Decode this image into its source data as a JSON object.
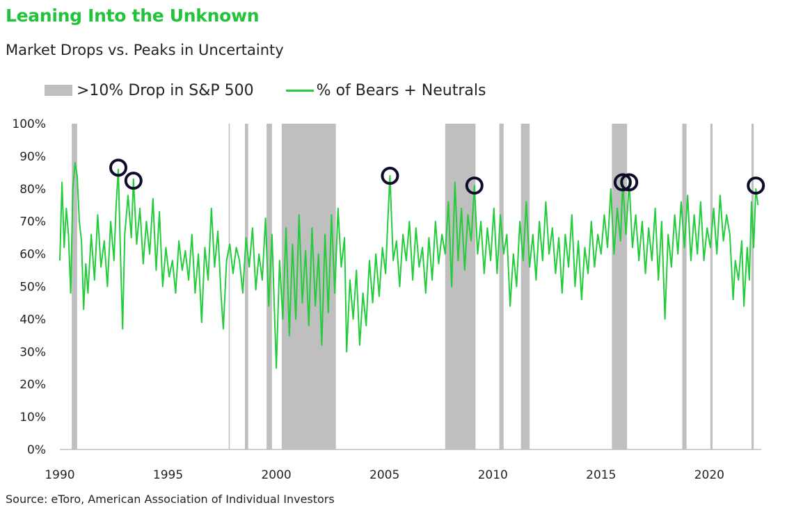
{
  "title": "Leaning Into the Unknown",
  "subtitle": "Market Drops vs. Peaks in Uncertainty",
  "source": "Source: eToro, American Association of Individual Investors",
  "colors": {
    "title": "#22c33a",
    "line": "#22cc3a",
    "shade": "#bfbfbf",
    "marker": "#0d0d2b"
  },
  "chart_data": {
    "type": "line",
    "title": "Market Drops vs. Peaks in Uncertainty",
    "xlabel": "",
    "ylabel": "",
    "xlim": [
      1990,
      2022.4
    ],
    "ylim": [
      0,
      100
    ],
    "grid": false,
    "legend_position": "top-left",
    "legend": [
      {
        "label": ">10% Drop in S&P 500",
        "kind": "shaded-band"
      },
      {
        "label": "% of Bears + Neutrals",
        "kind": "line"
      }
    ],
    "x_ticks": [
      {
        "value": 1990,
        "label": "1990"
      },
      {
        "value": 1995,
        "label": "1995"
      },
      {
        "value": 2000,
        "label": "2000"
      },
      {
        "value": 2005,
        "label": "2005"
      },
      {
        "value": 2010,
        "label": "2010"
      },
      {
        "value": 2015,
        "label": "2015"
      },
      {
        "value": 2020,
        "label": "2020"
      }
    ],
    "y_ticks": [
      {
        "value": 0,
        "label": "0%"
      },
      {
        "value": 10,
        "label": "10%"
      },
      {
        "value": 20,
        "label": "20%"
      },
      {
        "value": 30,
        "label": "30%"
      },
      {
        "value": 40,
        "label": "40%"
      },
      {
        "value": 50,
        "label": "50%"
      },
      {
        "value": 60,
        "label": "60%"
      },
      {
        "value": 70,
        "label": "70%"
      },
      {
        "value": 80,
        "label": "80%"
      },
      {
        "value": 90,
        "label": "90%"
      },
      {
        "value": 100,
        "label": "100%"
      }
    ],
    "drop_periods": [
      {
        "start": 1990.55,
        "end": 1990.8
      },
      {
        "start": 1997.8,
        "end": 1997.85
      },
      {
        "start": 1998.55,
        "end": 1998.7
      },
      {
        "start": 1999.55,
        "end": 1999.8
      },
      {
        "start": 2000.25,
        "end": 2002.75
      },
      {
        "start": 2007.8,
        "end": 2009.2
      },
      {
        "start": 2010.3,
        "end": 2010.5
      },
      {
        "start": 2011.3,
        "end": 2011.7
      },
      {
        "start": 2015.5,
        "end": 2016.2
      },
      {
        "start": 2018.75,
        "end": 2018.95
      },
      {
        "start": 2020.05,
        "end": 2020.15
      },
      {
        "start": 2021.95,
        "end": 2022.05
      }
    ],
    "series": [
      {
        "name": "% of Bears + Neutrals",
        "points": [
          [
            1990.0,
            58
          ],
          [
            1990.1,
            82
          ],
          [
            1990.2,
            62
          ],
          [
            1990.3,
            74
          ],
          [
            1990.4,
            66
          ],
          [
            1990.5,
            48
          ],
          [
            1990.6,
            80
          ],
          [
            1990.7,
            88
          ],
          [
            1990.8,
            84
          ],
          [
            1990.9,
            70
          ],
          [
            1991.0,
            64
          ],
          [
            1991.1,
            43
          ],
          [
            1991.2,
            57
          ],
          [
            1991.3,
            48
          ],
          [
            1991.45,
            66
          ],
          [
            1991.6,
            52
          ],
          [
            1991.75,
            72
          ],
          [
            1991.9,
            56
          ],
          [
            1992.05,
            64
          ],
          [
            1992.2,
            50
          ],
          [
            1992.35,
            70
          ],
          [
            1992.5,
            58
          ],
          [
            1992.6,
            75
          ],
          [
            1992.7,
            86
          ],
          [
            1992.8,
            60
          ],
          [
            1992.9,
            37
          ],
          [
            1993.0,
            66
          ],
          [
            1993.15,
            78
          ],
          [
            1993.3,
            65
          ],
          [
            1993.4,
            83
          ],
          [
            1993.55,
            63
          ],
          [
            1993.7,
            74
          ],
          [
            1993.85,
            57
          ],
          [
            1994.0,
            70
          ],
          [
            1994.15,
            60
          ],
          [
            1994.3,
            77
          ],
          [
            1994.45,
            55
          ],
          [
            1994.6,
            73
          ],
          [
            1994.75,
            50
          ],
          [
            1994.9,
            62
          ],
          [
            1995.05,
            53
          ],
          [
            1995.2,
            58
          ],
          [
            1995.35,
            48
          ],
          [
            1995.5,
            64
          ],
          [
            1995.65,
            55
          ],
          [
            1995.8,
            61
          ],
          [
            1995.95,
            52
          ],
          [
            1996.1,
            66
          ],
          [
            1996.25,
            48
          ],
          [
            1996.4,
            60
          ],
          [
            1996.55,
            39
          ],
          [
            1996.7,
            62
          ],
          [
            1996.85,
            52
          ],
          [
            1997.0,
            74
          ],
          [
            1997.15,
            56
          ],
          [
            1997.3,
            67
          ],
          [
            1997.45,
            47
          ],
          [
            1997.55,
            37
          ],
          [
            1997.7,
            58
          ],
          [
            1997.85,
            63
          ],
          [
            1998.0,
            54
          ],
          [
            1998.15,
            62
          ],
          [
            1998.3,
            58
          ],
          [
            1998.45,
            48
          ],
          [
            1998.6,
            65
          ],
          [
            1998.75,
            56
          ],
          [
            1998.9,
            68
          ],
          [
            1999.05,
            49
          ],
          [
            1999.2,
            60
          ],
          [
            1999.35,
            52
          ],
          [
            1999.5,
            71
          ],
          [
            1999.65,
            44
          ],
          [
            1999.8,
            66
          ],
          [
            1999.9,
            45
          ],
          [
            2000.0,
            25
          ],
          [
            2000.15,
            58
          ],
          [
            2000.3,
            40
          ],
          [
            2000.45,
            68
          ],
          [
            2000.6,
            35
          ],
          [
            2000.75,
            63
          ],
          [
            2000.9,
            40
          ],
          [
            2001.05,
            72
          ],
          [
            2001.2,
            45
          ],
          [
            2001.35,
            61
          ],
          [
            2001.5,
            38
          ],
          [
            2001.65,
            68
          ],
          [
            2001.8,
            44
          ],
          [
            2001.95,
            60
          ],
          [
            2002.1,
            32
          ],
          [
            2002.25,
            66
          ],
          [
            2002.4,
            42
          ],
          [
            2002.55,
            72
          ],
          [
            2002.7,
            48
          ],
          [
            2002.85,
            74
          ],
          [
            2003.0,
            56
          ],
          [
            2003.15,
            65
          ],
          [
            2003.25,
            30
          ],
          [
            2003.4,
            52
          ],
          [
            2003.55,
            40
          ],
          [
            2003.7,
            55
          ],
          [
            2003.85,
            32
          ],
          [
            2004.0,
            48
          ],
          [
            2004.15,
            38
          ],
          [
            2004.3,
            58
          ],
          [
            2004.45,
            45
          ],
          [
            2004.6,
            60
          ],
          [
            2004.75,
            47
          ],
          [
            2004.9,
            62
          ],
          [
            2005.05,
            54
          ],
          [
            2005.15,
            70
          ],
          [
            2005.25,
            84
          ],
          [
            2005.4,
            58
          ],
          [
            2005.55,
            64
          ],
          [
            2005.7,
            50
          ],
          [
            2005.85,
            66
          ],
          [
            2006.0,
            58
          ],
          [
            2006.15,
            70
          ],
          [
            2006.3,
            52
          ],
          [
            2006.45,
            68
          ],
          [
            2006.6,
            56
          ],
          [
            2006.75,
            62
          ],
          [
            2006.9,
            48
          ],
          [
            2007.05,
            65
          ],
          [
            2007.2,
            52
          ],
          [
            2007.35,
            70
          ],
          [
            2007.5,
            57
          ],
          [
            2007.65,
            66
          ],
          [
            2007.8,
            60
          ],
          [
            2007.95,
            76
          ],
          [
            2008.1,
            50
          ],
          [
            2008.25,
            82
          ],
          [
            2008.4,
            58
          ],
          [
            2008.55,
            74
          ],
          [
            2008.7,
            55
          ],
          [
            2008.85,
            72
          ],
          [
            2009.0,
            64
          ],
          [
            2009.15,
            81
          ],
          [
            2009.3,
            60
          ],
          [
            2009.45,
            70
          ],
          [
            2009.6,
            54
          ],
          [
            2009.75,
            68
          ],
          [
            2009.9,
            58
          ],
          [
            2010.05,
            74
          ],
          [
            2010.2,
            54
          ],
          [
            2010.35,
            72
          ],
          [
            2010.5,
            60
          ],
          [
            2010.65,
            66
          ],
          [
            2010.8,
            44
          ],
          [
            2010.95,
            60
          ],
          [
            2011.1,
            50
          ],
          [
            2011.25,
            70
          ],
          [
            2011.4,
            58
          ],
          [
            2011.55,
            76
          ],
          [
            2011.7,
            56
          ],
          [
            2011.85,
            66
          ],
          [
            2012.0,
            52
          ],
          [
            2012.15,
            70
          ],
          [
            2012.3,
            58
          ],
          [
            2012.45,
            76
          ],
          [
            2012.6,
            60
          ],
          [
            2012.75,
            68
          ],
          [
            2012.9,
            54
          ],
          [
            2013.05,
            65
          ],
          [
            2013.2,
            48
          ],
          [
            2013.35,
            66
          ],
          [
            2013.5,
            56
          ],
          [
            2013.65,
            72
          ],
          [
            2013.8,
            50
          ],
          [
            2013.95,
            64
          ],
          [
            2014.1,
            46
          ],
          [
            2014.25,
            62
          ],
          [
            2014.4,
            54
          ],
          [
            2014.55,
            70
          ],
          [
            2014.7,
            56
          ],
          [
            2014.85,
            66
          ],
          [
            2015.0,
            60
          ],
          [
            2015.15,
            72
          ],
          [
            2015.3,
            62
          ],
          [
            2015.45,
            80
          ],
          [
            2015.6,
            60
          ],
          [
            2015.75,
            74
          ],
          [
            2015.9,
            64
          ],
          [
            2016.0,
            82
          ],
          [
            2016.15,
            66
          ],
          [
            2016.3,
            82
          ],
          [
            2016.45,
            62
          ],
          [
            2016.6,
            72
          ],
          [
            2016.75,
            58
          ],
          [
            2016.9,
            70
          ],
          [
            2017.05,
            54
          ],
          [
            2017.2,
            68
          ],
          [
            2017.35,
            58
          ],
          [
            2017.5,
            74
          ],
          [
            2017.65,
            52
          ],
          [
            2017.8,
            70
          ],
          [
            2017.95,
            40
          ],
          [
            2018.1,
            66
          ],
          [
            2018.25,
            56
          ],
          [
            2018.4,
            72
          ],
          [
            2018.55,
            60
          ],
          [
            2018.7,
            76
          ],
          [
            2018.85,
            62
          ],
          [
            2019.0,
            78
          ],
          [
            2019.15,
            58
          ],
          [
            2019.3,
            72
          ],
          [
            2019.45,
            60
          ],
          [
            2019.6,
            76
          ],
          [
            2019.75,
            58
          ],
          [
            2019.9,
            68
          ],
          [
            2020.05,
            62
          ],
          [
            2020.2,
            74
          ],
          [
            2020.35,
            60
          ],
          [
            2020.5,
            78
          ],
          [
            2020.65,
            64
          ],
          [
            2020.8,
            72
          ],
          [
            2020.95,
            66
          ],
          [
            2021.1,
            46
          ],
          [
            2021.2,
            58
          ],
          [
            2021.35,
            52
          ],
          [
            2021.5,
            64
          ],
          [
            2021.6,
            44
          ],
          [
            2021.75,
            62
          ],
          [
            2021.85,
            52
          ],
          [
            2021.95,
            76
          ],
          [
            2022.05,
            62
          ],
          [
            2022.15,
            80
          ],
          [
            2022.25,
            75
          ]
        ]
      }
    ],
    "highlighted_peaks": [
      {
        "x": 1992.7,
        "y": 86.5
      },
      {
        "x": 1993.4,
        "y": 82.5
      },
      {
        "x": 2005.25,
        "y": 84
      },
      {
        "x": 2009.15,
        "y": 81
      },
      {
        "x": 2016.0,
        "y": 82
      },
      {
        "x": 2016.3,
        "y": 82
      },
      {
        "x": 2022.15,
        "y": 81
      }
    ]
  }
}
